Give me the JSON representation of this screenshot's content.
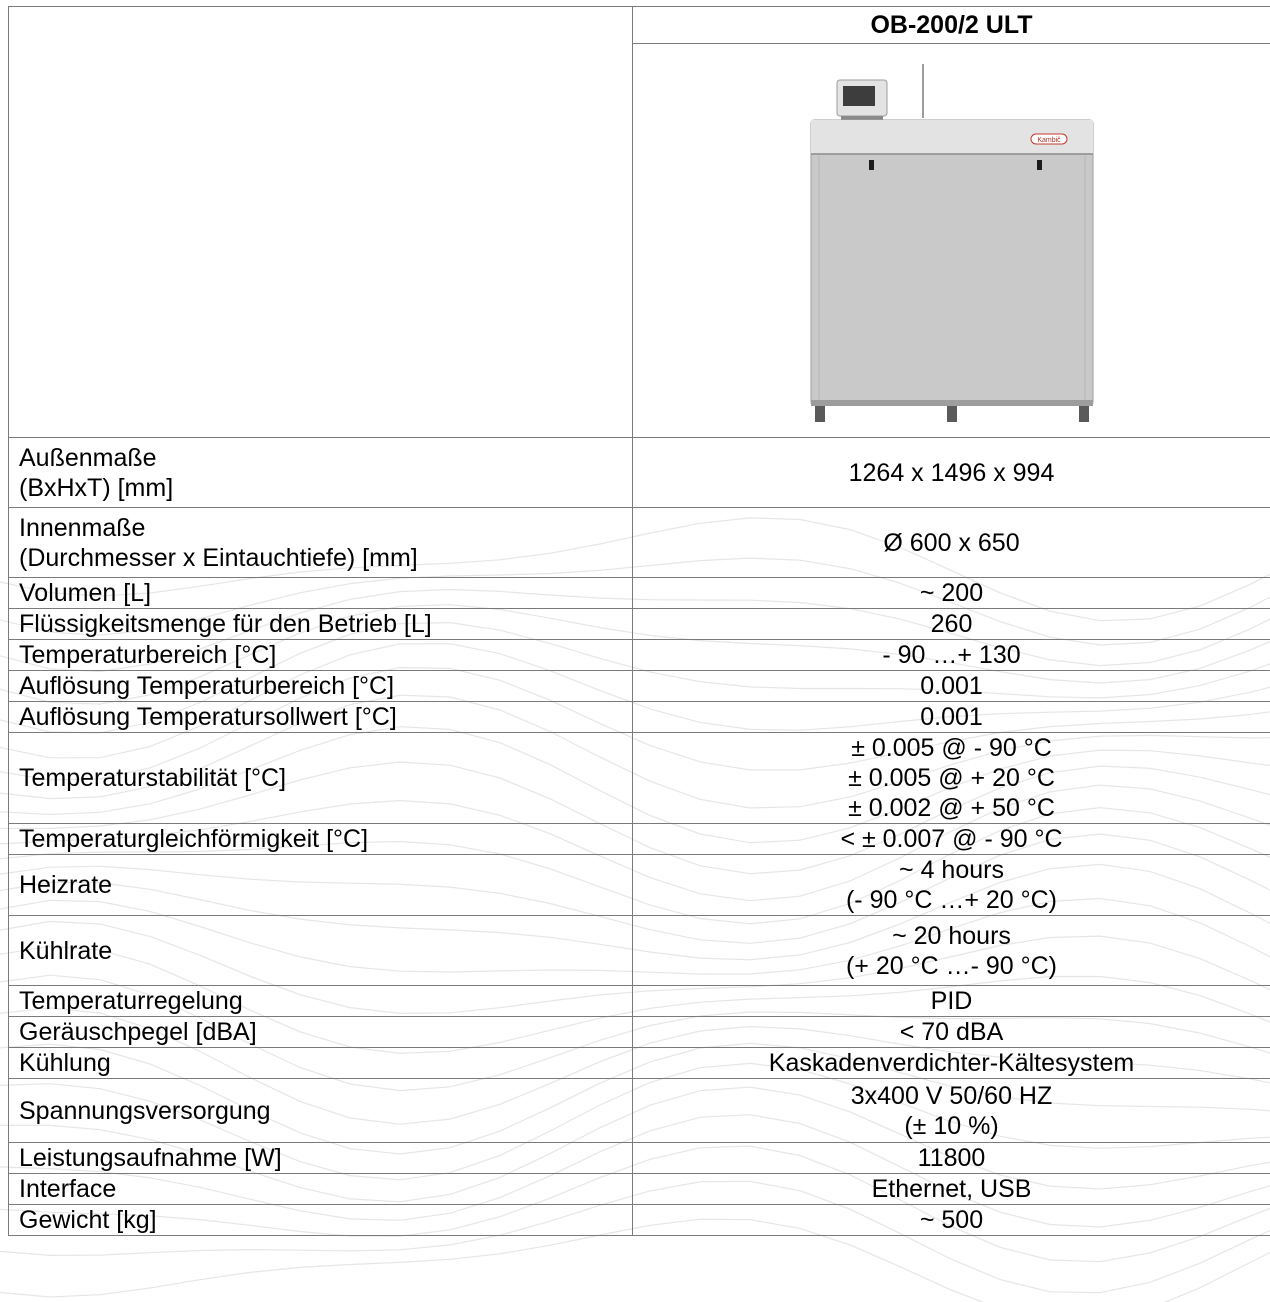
{
  "model": "OB-200/2 ULT",
  "product_image": {
    "logo_text": "Kambič",
    "colors": {
      "body": "#c9c9c9",
      "edge": "#9d9d9d",
      "panel": "#e3e3e3",
      "screen": "#3d3d3d",
      "wheel": "#5a5a5a"
    }
  },
  "specs": [
    {
      "label": [
        "Außenmaße",
        "(BxHxT) [mm]"
      ],
      "value": [
        "1264 x 1496 x 994"
      ]
    },
    {
      "label": [
        "Innenmaße",
        "(Durchmesser x Eintauchtiefe) [mm]"
      ],
      "value": [
        "Ø 600 x 650"
      ]
    },
    {
      "label": [
        "Volumen [L]"
      ],
      "value": [
        "~ 200"
      ]
    },
    {
      "label": [
        "Flüssigkeitsmenge für den Betrieb [L]"
      ],
      "value": [
        "260"
      ]
    },
    {
      "label": [
        "Temperaturbereich [°C]"
      ],
      "value": [
        "-  90 …+ 130"
      ]
    },
    {
      "label": [
        "Auflösung Temperaturbereich [°C]"
      ],
      "value": [
        "0.001"
      ]
    },
    {
      "label": [
        "Auflösung Temperatursollwert [°C]"
      ],
      "value": [
        "0.001"
      ]
    },
    {
      "label": [
        "Temperaturstabilität [°C]"
      ],
      "value": [
        "± 0.005 @ - 90 °C",
        "± 0.005 @ + 20 °C",
        "± 0.002 @ + 50 °C"
      ]
    },
    {
      "label": [
        "Temperaturgleichförmigkeit [°C]"
      ],
      "value": [
        "< ± 0.007 @ - 90 °C"
      ]
    },
    {
      "label": [
        "Heizrate"
      ],
      "value": [
        "~ 4 hours",
        "(- 90 °C …+ 20 °C)"
      ]
    },
    {
      "label": [
        "Kühlrate"
      ],
      "value": [
        "~ 20 hours",
        "(+ 20 °C …- 90 °C)"
      ]
    },
    {
      "label": [
        "Temperaturregelung"
      ],
      "value": [
        "PID"
      ]
    },
    {
      "label": [
        "Geräuschpegel [dBA]"
      ],
      "value": [
        "< 70 dBA"
      ]
    },
    {
      "label": [
        "Kühlung"
      ],
      "value": [
        "Kaskadenverdichter-Kältesystem"
      ]
    },
    {
      "label": [
        "Spannungsversorgung"
      ],
      "value": [
        "3x400 V 50/60 HZ",
        "(± 10 %)"
      ]
    },
    {
      "label": [
        "Leistungsaufnahme [W]"
      ],
      "value": [
        "11800"
      ]
    },
    {
      "label": [
        "Interface"
      ],
      "value": [
        "Ethernet, USB"
      ]
    },
    {
      "label": [
        "Gewicht [kg]"
      ],
      "value": [
        "~ 500"
      ]
    }
  ]
}
